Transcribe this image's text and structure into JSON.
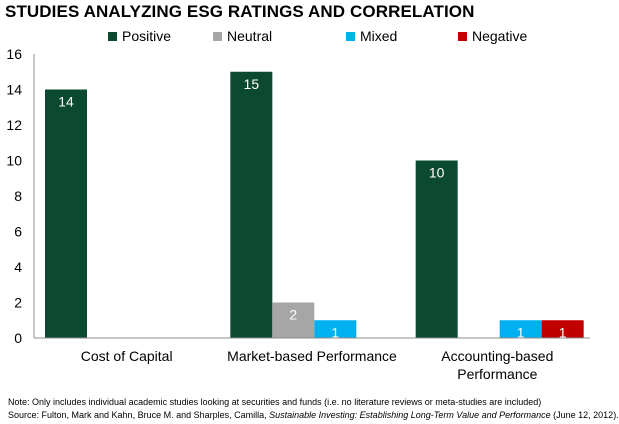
{
  "chart_data": {
    "type": "bar",
    "title": "STUDIES ANALYZING ESG RATINGS AND CORRELATION",
    "categories": [
      "Cost of Capital",
      "Market-based Performance",
      "Accounting-based Performance"
    ],
    "category_lines": [
      [
        "Cost of Capital"
      ],
      [
        "Market-based Performance"
      ],
      [
        "Accounting-based",
        "Performance"
      ]
    ],
    "series": [
      {
        "name": "Positive",
        "color": "#0b4a31",
        "values": [
          14,
          15,
          10
        ]
      },
      {
        "name": "Neutral",
        "color": "#a6a6a6",
        "values": [
          0,
          2,
          0
        ]
      },
      {
        "name": "Mixed",
        "color": "#00b0f0",
        "values": [
          0,
          1,
          1
        ]
      },
      {
        "name": "Negative",
        "color": "#c00000",
        "values": [
          0,
          0,
          1
        ]
      }
    ],
    "ylim": [
      0,
      16
    ],
    "yticks": [
      0,
      2,
      4,
      6,
      8,
      10,
      12,
      14,
      16
    ],
    "xlabel": "",
    "ylabel": "",
    "grid": false,
    "legend_position": "top",
    "data_labels": true
  },
  "footnotes": {
    "note": "Note: Only includes individual academic studies looking at securities and funds (i.e. no literature reviews or meta-studies are included)",
    "source_prefix": "Source:  Fulton, Mark and Kahn, Bruce M. and Sharples, Camilla, ",
    "source_title": "Sustainable Investing: Establishing Long-Term Value and Performance",
    "source_suffix": " (June 12, 2012)."
  }
}
